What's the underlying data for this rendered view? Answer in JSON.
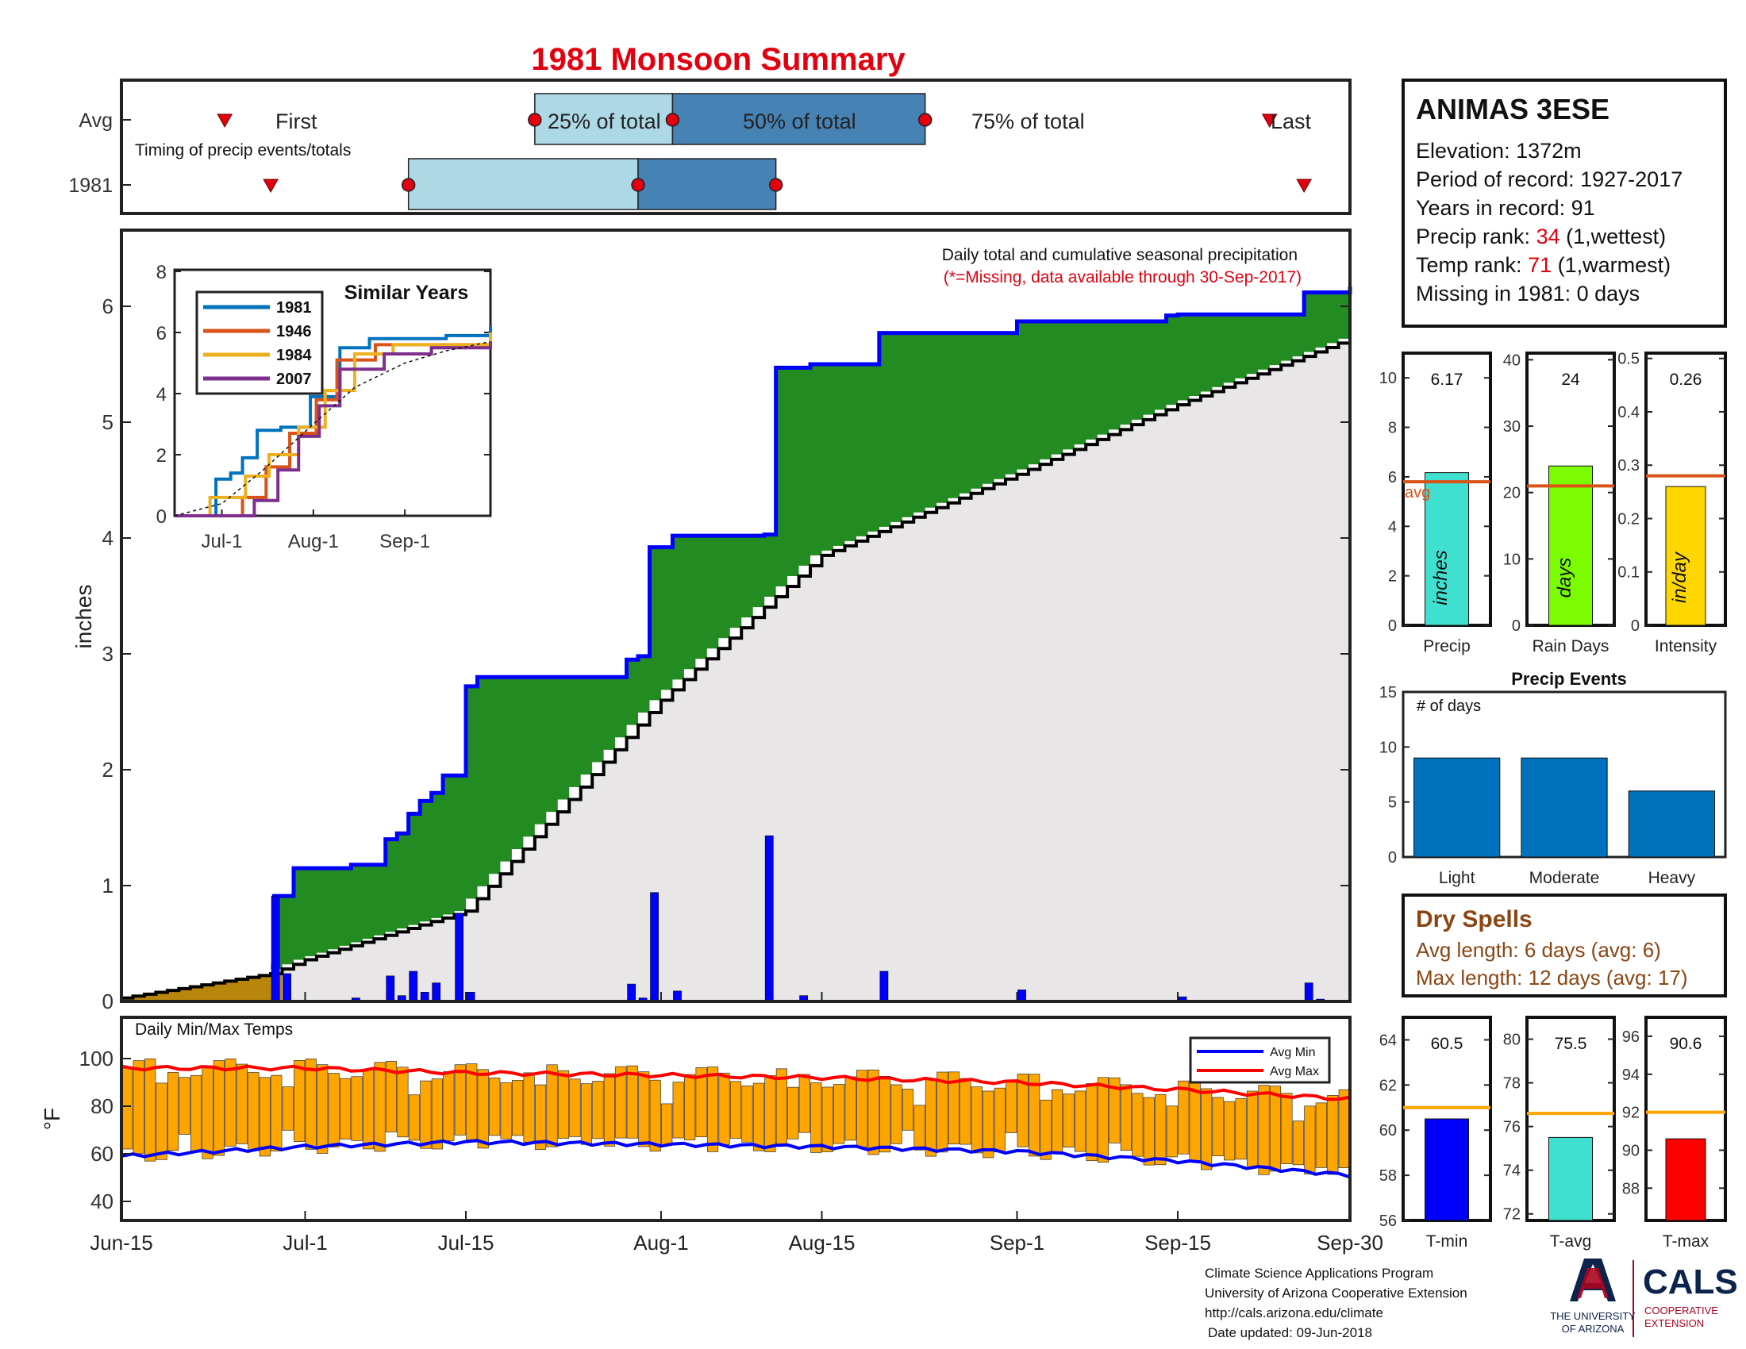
{
  "title": "1981 Monsoon Summary",
  "timing": {
    "row_avg": "Avg",
    "row_year": "1981",
    "caption": "Timing of precip events/totals",
    "first": "First",
    "last": "Last",
    "p25": "25% of total",
    "p50": "50% of total",
    "p75": "75% of total",
    "avg_marks": {
      "first": "Jun-24",
      "p25": "Jul-21",
      "p50": "Aug-2",
      "p75": "Aug-24",
      "last": "Sep-23"
    },
    "year_marks": {
      "first": "Jun-28",
      "p25": "Jul-10",
      "p50": "Jul-30",
      "p75": "Aug-11",
      "last": "Sep-26"
    }
  },
  "station": {
    "name": "ANIMAS 3ESE",
    "elevation_label": "Elevation: 1372m",
    "period_label": "Period of record: 1927-2017",
    "years_label": "Years in record: 91",
    "precip_rank_prefix": "Precip rank: ",
    "precip_rank": "34",
    "precip_rank_suffix": " (1,wettest)",
    "temp_rank_prefix": "Temp rank: ",
    "temp_rank": "71",
    "temp_rank_suffix": " (1,warmest)",
    "missing_label": "Missing in 1981: 0 days"
  },
  "main": {
    "caption": "Daily total and cumulative seasonal precipitation",
    "note": "(*=Missing, data available through 30-Sep-2017)",
    "ylabel": "inches"
  },
  "inset": {
    "title": "Similar Years",
    "legend": [
      "1981",
      "1946",
      "1984",
      "2007"
    ],
    "colors": [
      "#0072bd",
      "#d95319",
      "#edb120",
      "#7e2f8e"
    ],
    "xticks": [
      "Jul-1",
      "Aug-1",
      "Sep-1"
    ],
    "yticks": [
      "0",
      "2",
      "4",
      "6",
      "8"
    ]
  },
  "temps": {
    "caption": "Daily Min/Max Temps",
    "ylabel": "°F",
    "legend_min": "Avg Min",
    "legend_max": "Avg Max"
  },
  "xaxis": [
    "Jun-15",
    "Jul-1",
    "Jul-15",
    "Aug-1",
    "Aug-15",
    "Sep-1",
    "Sep-15",
    "Sep-30"
  ],
  "mini_charts": {
    "precip": {
      "value": "6.17",
      "unit": "inches",
      "xlabel": "Precip",
      "avg_label": "avg",
      "yticks": [
        "0",
        "2",
        "4",
        "6",
        "8",
        "10"
      ]
    },
    "rain_days": {
      "value": "24",
      "unit": "days",
      "xlabel": "Rain Days",
      "yticks": [
        "0",
        "10",
        "20",
        "30",
        "40"
      ]
    },
    "intensity": {
      "value": "0.26",
      "unit": "in/day",
      "xlabel": "Intensity",
      "yticks": [
        "0",
        "0.1",
        "0.2",
        "0.3",
        "0.4",
        "0.5"
      ]
    }
  },
  "events": {
    "title": "Precip Events",
    "ylabel": "# of days",
    "categories": [
      "Light",
      "Moderate",
      "Heavy"
    ],
    "yticks": [
      "0",
      "5",
      "10",
      "15"
    ]
  },
  "dry_spells": {
    "title": "Dry Spells",
    "avg": "Avg length: 6 days (avg: 6)",
    "max": "Max length: 12 days (avg: 17)"
  },
  "temp_minis": {
    "tmin": {
      "value": "60.5",
      "xlabel": "T-min",
      "yticks": [
        "56",
        "58",
        "60",
        "62",
        "64"
      ]
    },
    "tavg": {
      "value": "75.5",
      "xlabel": "T-avg",
      "yticks": [
        "72",
        "74",
        "76",
        "78",
        "80"
      ]
    },
    "tmax": {
      "value": "90.6",
      "xlabel": "T-max",
      "yticks": [
        "88",
        "90",
        "92",
        "94",
        "96"
      ]
    }
  },
  "footer": {
    "line1": "Climate Science Applications Program",
    "line2": "University of Arizona Cooperative Extension",
    "line3": "http://cals.arizona.edu/climate",
    "line4": "Date updated: 09-Jun-2018",
    "ua_line1": "THE UNIVERSITY",
    "ua_line2": "OF ARIZONA",
    "cals": "CALS",
    "cals_line1": "COOPERATIVE",
    "cals_line2": "EXTENSION"
  },
  "colors": {
    "title": "#e3000f",
    "green": "#228b22",
    "blue": "#0000ff",
    "orange": "#ffa500",
    "gray_fill": "#e8e6e6",
    "avg_line": "#d95319",
    "light_box": "#add8e6",
    "dark_box": "#4682b4"
  },
  "chart_data": [
    {
      "type": "area",
      "title": "Daily total and cumulative seasonal precipitation",
      "ylabel": "inches",
      "xlim": [
        "Jun-15",
        "Sep-30"
      ],
      "ylim": [
        0,
        6.5
      ],
      "series": [
        {
          "name": "1981",
          "points": [
            [
              "Jun-15",
              0
            ],
            [
              "Jun-28",
              0
            ],
            [
              "Jun-29",
              0.91
            ],
            [
              "Jun-30",
              1.15
            ],
            [
              "Jul-5",
              1.18
            ],
            [
              "Jul-8",
              1.4
            ],
            [
              "Jul-9",
              1.45
            ],
            [
              "Jul-10",
              1.62
            ],
            [
              "Jul-11",
              1.73
            ],
            [
              "Jul-12",
              1.8
            ],
            [
              "Jul-13",
              1.95
            ],
            [
              "Jul-15",
              2.72
            ],
            [
              "Jul-16",
              2.8
            ],
            [
              "Jul-29",
              2.95
            ],
            [
              "Jul-30",
              2.98
            ],
            [
              "Jul-31",
              3.92
            ],
            [
              "Aug-2",
              4.02
            ],
            [
              "Aug-10",
              4.03
            ],
            [
              "Aug-11",
              5.47
            ],
            [
              "Aug-14",
              5.5
            ],
            [
              "Aug-20",
              5.77
            ],
            [
              "Sep-1",
              5.87
            ],
            [
              "Sep-14",
              5.92
            ],
            [
              "Sep-15",
              5.93
            ],
            [
              "Sep-26",
              6.12
            ],
            [
              "Sep-30",
              6.17
            ]
          ]
        },
        {
          "points": [
            [
              "Jun-15",
              0.03
            ],
            [
              "Jun-28",
              0.24
            ],
            [
              "Jul-1",
              0.36
            ],
            [
              "Jul-15",
              0.78
            ],
            [
              "Aug-1",
              2.6
            ],
            [
              "Aug-15",
              3.85
            ],
            [
              "Sep-1",
              4.55
            ],
            [
              "Sep-15",
              5.15
            ],
            [
              "Sep-30",
              5.72
            ]
          ]
        }
      ],
      "daily": [
        [
          "Jun-28",
          0.91
        ],
        [
          "Jun-29",
          0.24
        ],
        [
          "Jul-5",
          0.03
        ],
        [
          "Jul-8",
          0.22
        ],
        [
          "Jul-9",
          0.05
        ],
        [
          "Jul-10",
          0.26
        ],
        [
          "Jul-11",
          0.08
        ],
        [
          "Jul-12",
          0.16
        ],
        [
          "Jul-14",
          0.76
        ],
        [
          "Jul-15",
          0.08
        ],
        [
          "Jul-29",
          0.15
        ],
        [
          "Jul-30",
          0.03
        ],
        [
          "Jul-31",
          0.94
        ],
        [
          "Aug-2",
          0.09
        ],
        [
          "Aug-10",
          1.43
        ],
        [
          "Aug-13",
          0.05
        ],
        [
          "Aug-20",
          0.26
        ],
        [
          "Sep-1",
          0.1
        ],
        [
          "Sep-15",
          0.04
        ],
        [
          "Sep-26",
          0.16
        ],
        [
          "Sep-27",
          0.02
        ]
      ]
    },
    {
      "type": "bar",
      "title": "Daily Min/Max Temps",
      "ylabel": "°F",
      "ylim": [
        30,
        110
      ],
      "series": [
        {
          "name": "Avg Min",
          "points": [
            [
              "Jun-15",
              59
            ],
            [
              "Jul-1",
              63
            ],
            [
              "Jul-15",
              65
            ],
            [
              "Aug-1",
              64
            ],
            [
              "Aug-15",
              63
            ],
            [
              "Sep-1",
              61
            ],
            [
              "Sep-15",
              57
            ],
            [
              "Sep-30",
              51
            ]
          ]
        },
        {
          "name": "Avg Max",
          "points": [
            [
              "Jun-15",
              96
            ],
            [
              "Jul-1",
              96
            ],
            [
              "Jul-15",
              94
            ],
            [
              "Aug-1",
              93
            ],
            [
              "Aug-15",
              92
            ],
            [
              "Sep-1",
              90
            ],
            [
              "Sep-15",
              87
            ],
            [
              "Sep-30",
              83
            ]
          ]
        }
      ]
    },
    {
      "type": "bar",
      "title": "Precip Events",
      "ylabel": "# of days",
      "categories": [
        "Light",
        "Moderate",
        "Heavy"
      ],
      "values": [
        9,
        9,
        6
      ],
      "ylim": [
        0,
        15
      ]
    },
    {
      "type": "bar",
      "categories": [
        "Precip",
        "Rain Days",
        "Intensity"
      ],
      "values": [
        6.17,
        24,
        0.26
      ],
      "averages": [
        5.8,
        21,
        0.28
      ]
    },
    {
      "type": "bar",
      "categories": [
        "T-min",
        "T-avg",
        "T-max"
      ],
      "values": [
        60.5,
        75.5,
        90.6
      ],
      "averages": [
        61,
        76.6,
        92
      ]
    },
    {
      "type": "line",
      "title": "Similar Years",
      "ylim": [
        0,
        8
      ],
      "series": [
        {
          "name": "1981",
          "points": [
            [
              "Jun-15",
              0
            ],
            [
              "Jun-28",
              0
            ],
            [
              "Jun-29",
              1.2
            ],
            [
              "Jul-4",
              1.4
            ],
            [
              "Jul-8",
              1.9
            ],
            [
              "Jul-13",
              2.8
            ],
            [
              "Jul-21",
              2.9
            ],
            [
              "Jul-31",
              3.9
            ],
            [
              "Aug-10",
              5.5
            ],
            [
              "Aug-20",
              5.8
            ],
            [
              "Sep-15",
              5.9
            ],
            [
              "Sep-30",
              6.2
            ]
          ]
        },
        {
          "name": "1946",
          "points": [
            [
              "Jun-15",
              0
            ],
            [
              "Jun-30",
              0
            ],
            [
              "Jul-8",
              0.6
            ],
            [
              "Jul-16",
              1.6
            ],
            [
              "Jul-24",
              2.7
            ],
            [
              "Aug-2",
              3.8
            ],
            [
              "Aug-9",
              5.1
            ],
            [
              "Aug-22",
              5.6
            ],
            [
              "Sep-30",
              5.8
            ]
          ]
        },
        {
          "name": "1984",
          "points": [
            [
              "Jun-15",
              0
            ],
            [
              "Jun-25",
              0
            ],
            [
              "Jun-27",
              0.6
            ],
            [
              "Jul-9",
              1.3
            ],
            [
              "Jul-17",
              2.0
            ],
            [
              "Jul-27",
              2.9
            ],
            [
              "Aug-5",
              4.1
            ],
            [
              "Aug-15",
              5.3
            ],
            [
              "Aug-28",
              5.6
            ],
            [
              "Sep-30",
              6.0
            ]
          ]
        },
        {
          "name": "2007",
          "points": [
            [
              "Jun-15",
              0
            ],
            [
              "Jul-4",
              0
            ],
            [
              "Jul-12",
              0.5
            ],
            [
              "Jul-20",
              1.5
            ],
            [
              "Jul-27",
              2.6
            ],
            [
              "Aug-3",
              3.6
            ],
            [
              "Aug-10",
              4.8
            ],
            [
              "Aug-25",
              5.3
            ],
            [
              "Sep-10",
              5.5
            ],
            [
              "Sep-30",
              5.7
            ]
          ]
        },
        {
          "points": [
            [
              "Jun-15",
              0
            ],
            [
              "Jul-1",
              0.4
            ],
            [
              "Jul-15",
              1.5
            ],
            [
              "Aug-1",
              3.0
            ],
            [
              "Aug-15",
              4.2
            ],
            [
              "Sep-1",
              5.0
            ],
            [
              "Sep-15",
              5.4
            ],
            [
              "Sep-30",
              5.7
            ]
          ]
        }
      ]
    }
  ]
}
